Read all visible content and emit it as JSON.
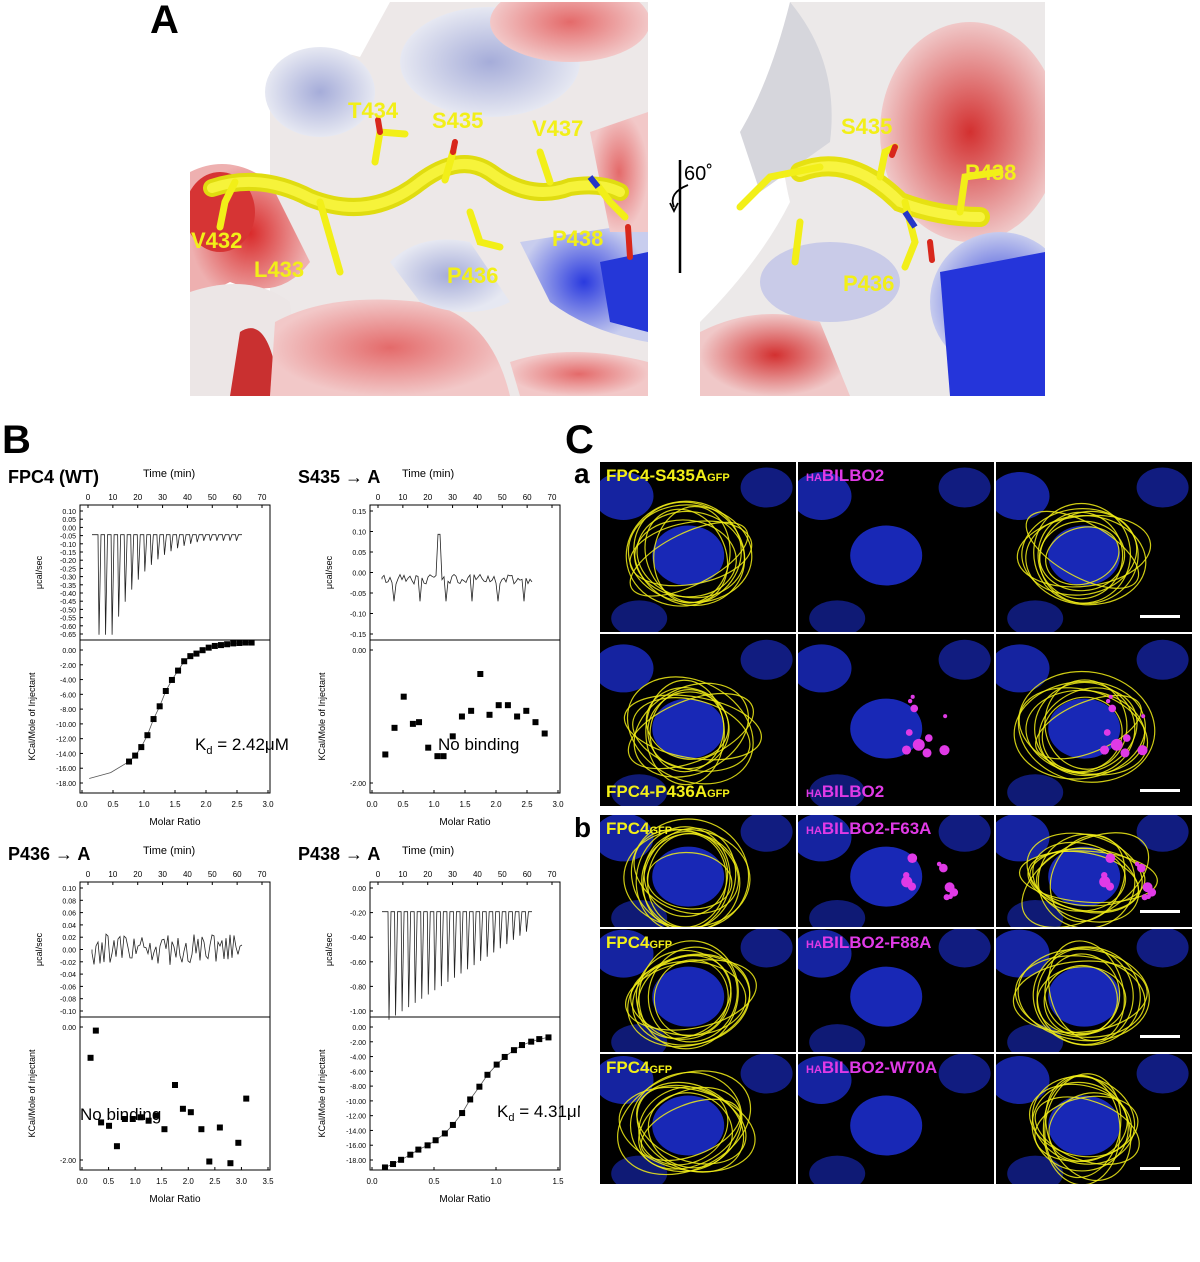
{
  "panels": {
    "A": "A",
    "B": "B",
    "C": "C"
  },
  "panelA": {
    "left_labels": [
      "T434",
      "S435",
      "V437",
      "V432",
      "L433",
      "P436",
      "P438"
    ],
    "right_labels": [
      "S435",
      "P438",
      "P436"
    ],
    "rotation": "60˚"
  },
  "panelB": {
    "plots": [
      {
        "title": "FPC4 (WT)",
        "time_label": "Time (min)",
        "kd_prefix": "K",
        "kd_sub": "d",
        "kd_value": " = 2.42μM",
        "note": "",
        "top_ylabel": "μcal/sec",
        "bottom_ylabel": "KCal/Mole of Injectant",
        "xlabel": "Molar Ratio",
        "time_ticks": [
          "0",
          "10",
          "20",
          "30",
          "40",
          "50",
          "60",
          "70"
        ],
        "top_yticks": [
          "0.10",
          "0.05",
          "0.00",
          "-0.05",
          "-0.10",
          "-0.15",
          "-0.20",
          "-0.25",
          "-0.30",
          "-0.35",
          "-0.40",
          "-0.45",
          "-0.50",
          "-0.55",
          "-0.60",
          "-0.65"
        ],
        "bottom_yticks": [
          "0.00",
          "-2.00",
          "-4.00",
          "-6.00",
          "-8.00",
          "-10.00",
          "-12.00",
          "-14.00",
          "-16.00",
          "-18.00"
        ],
        "xticks": [
          "0.0",
          "0.5",
          "1.0",
          "1.5",
          "2.0",
          "2.5",
          "3.0"
        ]
      },
      {
        "title": "S435 → A",
        "time_label": "Time (min)",
        "kd_prefix": "",
        "kd_sub": "",
        "kd_value": "",
        "note": "No binding",
        "top_ylabel": "μcal/sec",
        "bottom_ylabel": "KCal/Mole of Injectant",
        "xlabel": "Molar Ratio",
        "time_ticks": [
          "0",
          "10",
          "20",
          "30",
          "40",
          "50",
          "60",
          "70"
        ],
        "top_yticks": [
          "0.15",
          "0.10",
          "0.05",
          "0.00",
          "-0.05",
          "-0.10",
          "-0.15"
        ],
        "bottom_yticks": [
          "0.00",
          "-2.00"
        ],
        "xticks": [
          "0.0",
          "0.5",
          "1.0",
          "1.5",
          "2.0",
          "2.5",
          "3.0"
        ]
      },
      {
        "title": "P436 → A",
        "time_label": "Time (min)",
        "kd_prefix": "",
        "kd_sub": "",
        "kd_value": "",
        "note": "No binding",
        "top_ylabel": "μcal/sec",
        "bottom_ylabel": "KCal/Mole of Injectant",
        "xlabel": "Molar Ratio",
        "time_ticks": [
          "0",
          "10",
          "20",
          "30",
          "40",
          "50",
          "60",
          "70"
        ],
        "top_yticks": [
          "0.10",
          "0.08",
          "0.06",
          "0.04",
          "0.02",
          "0.00",
          "-0.02",
          "-0.04",
          "-0.06",
          "-0.08",
          "-0.10"
        ],
        "bottom_yticks": [
          "0.00",
          "-2.00"
        ],
        "xticks": [
          "0.0",
          "0.5",
          "1.0",
          "1.5",
          "2.0",
          "2.5",
          "3.0",
          "3.5"
        ]
      },
      {
        "title": "P438 → A",
        "time_label": "Time (min)",
        "kd_prefix": "K",
        "kd_sub": "d",
        "kd_value": " = 4.31μM",
        "note": "",
        "top_ylabel": "μcal/sec",
        "bottom_ylabel": "KCal/Mole of Injectant",
        "xlabel": "Molar Ratio",
        "time_ticks": [
          "0",
          "10",
          "20",
          "30",
          "40",
          "50",
          "60",
          "70"
        ],
        "top_yticks": [
          "0.00",
          "-0.20",
          "-0.40",
          "-0.60",
          "-0.80",
          "-1.00"
        ],
        "bottom_yticks": [
          "0.00",
          "-2.00",
          "-4.00",
          "-6.00",
          "-8.00",
          "-10.00",
          "-12.00",
          "-14.00",
          "-16.00",
          "-18.00"
        ],
        "xticks": [
          "0.0",
          "0.5",
          "1.0",
          "1.5"
        ]
      }
    ]
  },
  "chart_data": [
    {
      "type": "scatter",
      "title": "FPC4 (WT)",
      "xlabel": "Molar Ratio",
      "ylabel": "KCal/Mole of Injectant",
      "xlim": [
        -0.1,
        3.0
      ],
      "ylim": [
        -18,
        0
      ],
      "x": [
        0.7,
        0.8,
        0.9,
        1.0,
        1.1,
        1.2,
        1.3,
        1.4,
        1.5,
        1.6,
        1.7,
        1.8,
        1.9,
        2.0,
        2.1,
        2.2,
        2.3,
        2.4,
        2.5,
        2.6,
        2.7
      ],
      "y": [
        -14.3,
        -13.6,
        -12.6,
        -11.2,
        -9.3,
        -7.8,
        -6.0,
        -4.7,
        -3.6,
        -2.5,
        -1.9,
        -1.6,
        -1.2,
        -0.9,
        -0.7,
        -0.6,
        -0.5,
        -0.4,
        -0.35,
        -0.3,
        -0.3
      ]
    },
    {
      "type": "scatter",
      "title": "S435 → A",
      "xlabel": "Molar Ratio",
      "ylabel": "KCal/Mole of Injectant",
      "xlim": [
        -0.1,
        3.0
      ],
      "ylim": [
        -2.0,
        0.7
      ],
      "x": [
        0.15,
        0.3,
        0.45,
        0.6,
        0.7,
        0.85,
        1.0,
        1.1,
        1.25,
        1.4,
        1.55,
        1.7,
        1.85,
        2.0,
        2.15,
        2.3,
        2.45,
        2.6,
        2.75
      ],
      "y": [
        -1.32,
        -0.85,
        -0.3,
        -0.78,
        -0.75,
        -1.2,
        -1.35,
        -1.35,
        -1.0,
        -0.65,
        -0.55,
        0.1,
        -0.62,
        -0.45,
        -0.45,
        -0.65,
        -0.55,
        -0.75,
        -0.95
      ]
    },
    {
      "type": "scatter",
      "title": "P436 → A",
      "xlabel": "Molar Ratio",
      "ylabel": "KCal/Mole of Injectant",
      "xlim": [
        -0.1,
        3.5
      ],
      "ylim": [
        -2.0,
        2.5
      ],
      "x": [
        0.1,
        0.2,
        0.3,
        0.45,
        0.6,
        0.75,
        0.9,
        1.05,
        1.2,
        1.35,
        1.5,
        1.7,
        1.85,
        2.0,
        2.2,
        2.35,
        2.55,
        2.75,
        2.9,
        3.05
      ],
      "y": [
        1.3,
        2.1,
        -0.6,
        -0.7,
        -1.3,
        -0.5,
        -0.5,
        -0.45,
        -0.55,
        -0.4,
        -0.8,
        0.5,
        -0.2,
        -0.3,
        -0.8,
        -1.75,
        -0.75,
        -1.8,
        -1.2,
        0.1
      ]
    },
    {
      "type": "scatter",
      "title": "P438 → A",
      "xlabel": "Molar Ratio",
      "ylabel": "KCal/Mole of Injectant",
      "xlim": [
        -0.05,
        1.6
      ],
      "ylim": [
        -18,
        0
      ],
      "x": [
        0.08,
        0.15,
        0.22,
        0.3,
        0.37,
        0.45,
        0.52,
        0.6,
        0.67,
        0.75,
        0.82,
        0.9,
        0.97,
        1.05,
        1.12,
        1.2,
        1.27,
        1.35,
        1.42,
        1.5
      ],
      "y": [
        -17.7,
        -17.3,
        -16.8,
        -16.2,
        -15.6,
        -15.1,
        -14.5,
        -13.7,
        -12.7,
        -11.3,
        -9.7,
        -8.2,
        -6.8,
        -5.6,
        -4.7,
        -3.9,
        -3.3,
        -2.9,
        -2.6,
        -2.4
      ]
    }
  ],
  "panelC": {
    "row_a": "a",
    "row_b": "b",
    "rows": [
      {
        "green_main": "FPC4-S435A",
        "green_sub": "GFP",
        "mag_pre": "HA",
        "mag_main": "BILBO2",
        "label_pos": "top"
      },
      {
        "green_main": "FPC4-P436A",
        "green_sub": "GFP",
        "mag_pre": "HA",
        "mag_main": "BILBO2",
        "label_pos": "bottom"
      },
      {
        "green_main": "FPC4",
        "green_sub": "GFP",
        "mag_pre": "HA",
        "mag_main": "BILBO2-F63A",
        "label_pos": "top"
      },
      {
        "green_main": "FPC4",
        "green_sub": "GFP",
        "mag_pre": "HA",
        "mag_main": "BILBO2-F88A",
        "label_pos": "top"
      },
      {
        "green_main": "FPC4",
        "green_sub": "GFP",
        "mag_pre": "HA",
        "mag_main": "BILBO2-W70A",
        "label_pos": "top"
      }
    ]
  },
  "colors": {
    "yellow": "#f2ef18",
    "magenta": "#e03ae6",
    "nucleus": "#1c2fd6"
  }
}
